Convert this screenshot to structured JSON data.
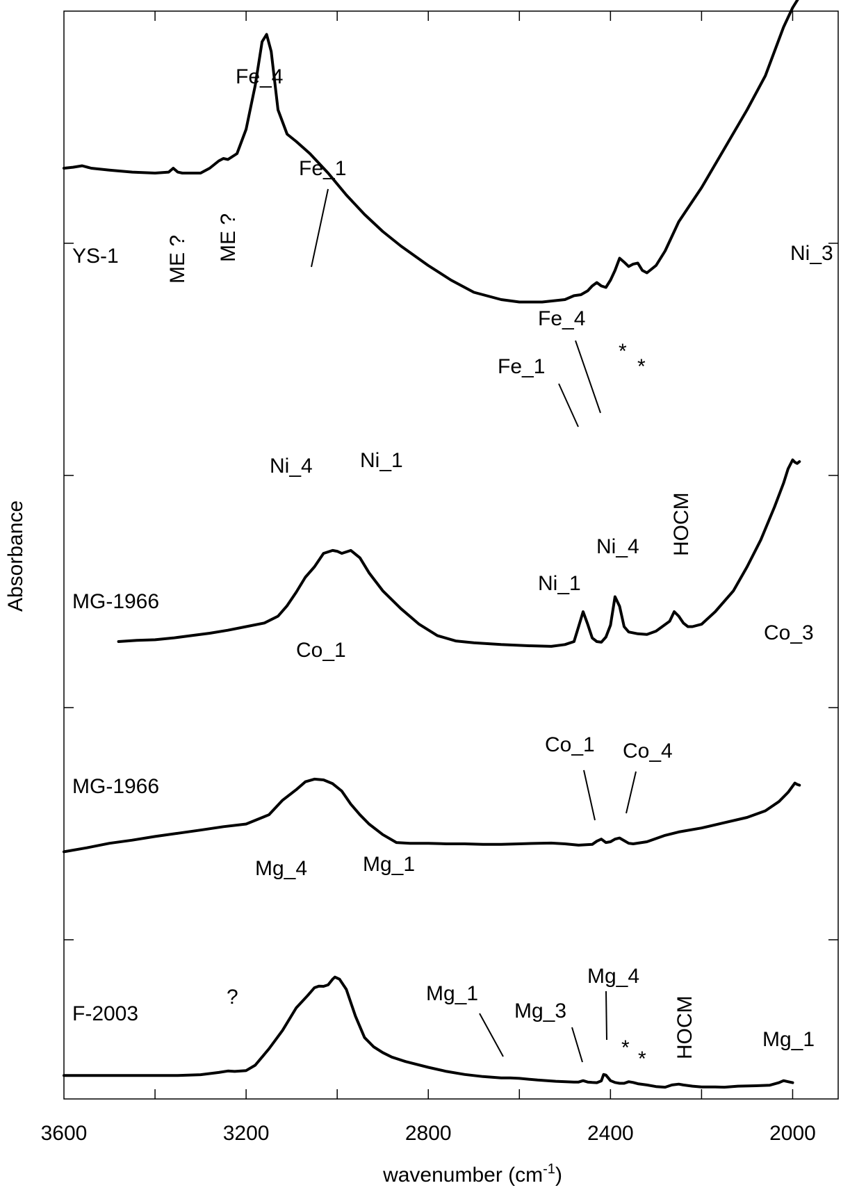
{
  "chart_data": {
    "type": "line",
    "xlabel": "wavenumber (cm",
    "xlabel_sup": "-1",
    "xlabel_close": ")",
    "ylabel": "Absorbance",
    "xlim": [
      3600,
      1900
    ],
    "xdir": "reversed",
    "x_ticks": [
      3600,
      3200,
      2800,
      2400,
      2000
    ],
    "x_tick_labels": [
      "3600",
      "3200",
      "2800",
      "2400",
      "2000"
    ],
    "grid": false,
    "series": [
      {
        "name": "YS-1",
        "x": [
          3600,
          3580,
          3560,
          3540,
          3500,
          3450,
          3400,
          3370,
          3360,
          3350,
          3340,
          3300,
          3280,
          3260,
          3250,
          3240,
          3220,
          3200,
          3180,
          3165,
          3155,
          3145,
          3130,
          3110,
          3090,
          3060,
          3020,
          2980,
          2940,
          2900,
          2860,
          2800,
          2750,
          2700,
          2640,
          2600,
          2550,
          2500,
          2480,
          2465,
          2450,
          2440,
          2430,
          2420,
          2410,
          2400,
          2390,
          2380,
          2370,
          2360,
          2350,
          2340,
          2330,
          2320,
          2300,
          2280,
          2250,
          2200,
          2150,
          2100,
          2060,
          2040,
          2020,
          2000,
          1980,
          1970
        ],
        "y": [
          0.64,
          0.642,
          0.645,
          0.64,
          0.636,
          0.632,
          0.63,
          0.632,
          0.64,
          0.632,
          0.63,
          0.63,
          0.64,
          0.655,
          0.66,
          0.658,
          0.67,
          0.72,
          0.81,
          0.9,
          0.915,
          0.88,
          0.76,
          0.71,
          0.695,
          0.67,
          0.63,
          0.585,
          0.545,
          0.51,
          0.48,
          0.44,
          0.41,
          0.385,
          0.37,
          0.365,
          0.365,
          0.37,
          0.378,
          0.38,
          0.388,
          0.398,
          0.405,
          0.398,
          0.395,
          0.41,
          0.43,
          0.455,
          0.447,
          0.438,
          0.443,
          0.445,
          0.43,
          0.425,
          0.44,
          0.47,
          0.53,
          0.6,
          0.68,
          0.76,
          0.83,
          0.88,
          0.93,
          0.97,
          1.0,
          1.02
        ]
      },
      {
        "name": "MG-1966",
        "x": [
          3480,
          3440,
          3400,
          3360,
          3320,
          3280,
          3240,
          3200,
          3160,
          3130,
          3110,
          3090,
          3070,
          3050,
          3030,
          3010,
          3000,
          2990,
          2970,
          2950,
          2930,
          2900,
          2860,
          2820,
          2780,
          2740,
          2700,
          2640,
          2580,
          2530,
          2500,
          2480,
          2470,
          2460,
          2450,
          2440,
          2430,
          2420,
          2410,
          2400,
          2390,
          2380,
          2370,
          2360,
          2340,
          2320,
          2300,
          2270,
          2260,
          2250,
          2240,
          2230,
          2220,
          2200,
          2170,
          2130,
          2100,
          2070,
          2040,
          2020,
          2010,
          2000,
          1995,
          1990,
          1985
        ],
        "y": [
          0.2,
          0.204,
          0.206,
          0.212,
          0.22,
          0.228,
          0.238,
          0.25,
          0.262,
          0.285,
          0.32,
          0.365,
          0.415,
          0.45,
          0.495,
          0.505,
          0.502,
          0.495,
          0.505,
          0.48,
          0.43,
          0.37,
          0.31,
          0.258,
          0.22,
          0.202,
          0.196,
          0.19,
          0.186,
          0.184,
          0.19,
          0.2,
          0.25,
          0.3,
          0.258,
          0.212,
          0.2,
          0.198,
          0.215,
          0.255,
          0.35,
          0.318,
          0.25,
          0.232,
          0.226,
          0.224,
          0.235,
          0.268,
          0.3,
          0.285,
          0.262,
          0.25,
          0.25,
          0.258,
          0.3,
          0.37,
          0.45,
          0.54,
          0.65,
          0.73,
          0.778,
          0.808,
          0.8,
          0.796,
          0.802
        ]
      },
      {
        "name": "MG-1966",
        "x": [
          3600,
          3550,
          3500,
          3450,
          3400,
          3350,
          3300,
          3250,
          3200,
          3150,
          3120,
          3090,
          3070,
          3050,
          3030,
          3010,
          2990,
          2970,
          2950,
          2930,
          2900,
          2870,
          2840,
          2800,
          2760,
          2720,
          2680,
          2640,
          2600,
          2560,
          2530,
          2500,
          2470,
          2440,
          2430,
          2420,
          2410,
          2400,
          2390,
          2380,
          2370,
          2360,
          2350,
          2320,
          2300,
          2280,
          2250,
          2200,
          2150,
          2100,
          2060,
          2030,
          2010,
          1995,
          1990,
          1985
        ],
        "y": [
          0.02,
          0.035,
          0.052,
          0.064,
          0.078,
          0.09,
          0.102,
          0.115,
          0.125,
          0.16,
          0.215,
          0.255,
          0.285,
          0.295,
          0.292,
          0.278,
          0.25,
          0.2,
          0.16,
          0.125,
          0.085,
          0.055,
          0.052,
          0.052,
          0.05,
          0.05,
          0.048,
          0.048,
          0.05,
          0.052,
          0.053,
          0.05,
          0.045,
          0.048,
          0.06,
          0.068,
          0.055,
          0.058,
          0.068,
          0.072,
          0.062,
          0.052,
          0.05,
          0.058,
          0.07,
          0.082,
          0.095,
          0.11,
          0.13,
          0.15,
          0.175,
          0.21,
          0.245,
          0.28,
          0.275,
          0.272
        ]
      },
      {
        "name": "F-2003",
        "x": [
          3600,
          3500,
          3400,
          3350,
          3300,
          3260,
          3240,
          3225,
          3200,
          3180,
          3150,
          3120,
          3090,
          3065,
          3050,
          3040,
          3030,
          3020,
          3010,
          3005,
          2995,
          2980,
          2960,
          2940,
          2920,
          2900,
          2880,
          2850,
          2800,
          2760,
          2720,
          2680,
          2640,
          2620,
          2600,
          2560,
          2520,
          2480,
          2470,
          2460,
          2450,
          2440,
          2430,
          2420,
          2415,
          2410,
          2400,
          2390,
          2380,
          2370,
          2360,
          2350,
          2340,
          2320,
          2300,
          2280,
          2265,
          2250,
          2240,
          2220,
          2200,
          2170,
          2150,
          2120,
          2080,
          2050,
          2030,
          2020,
          2010,
          2000
        ],
        "y": [
          0.06,
          0.06,
          0.06,
          0.06,
          0.064,
          0.075,
          0.082,
          0.08,
          0.084,
          0.11,
          0.19,
          0.28,
          0.39,
          0.45,
          0.488,
          0.496,
          0.495,
          0.502,
          0.53,
          0.54,
          0.53,
          0.48,
          0.35,
          0.245,
          0.2,
          0.172,
          0.15,
          0.128,
          0.1,
          0.08,
          0.065,
          0.055,
          0.048,
          0.048,
          0.046,
          0.038,
          0.032,
          0.028,
          0.028,
          0.035,
          0.028,
          0.026,
          0.025,
          0.034,
          0.065,
          0.062,
          0.035,
          0.026,
          0.022,
          0.022,
          0.03,
          0.026,
          0.02,
          0.014,
          0.006,
          0.003,
          0.014,
          0.018,
          0.014,
          0.008,
          0.004,
          0.004,
          0.003,
          0.008,
          0.01,
          0.013,
          0.025,
          0.035,
          0.03,
          0.025
        ]
      }
    ],
    "annotations": {
      "ys1": [
        "YS-1",
        "ME ?",
        "ME ?",
        "Fe_4",
        "Fe_1",
        "Fe_4",
        "Fe_1",
        "*",
        "*",
        "Ni_3"
      ],
      "mg1966_ni": [
        "MG-1966",
        "Ni_4",
        "Ni_1",
        "Ni_1",
        "Ni_4",
        "HOCM"
      ],
      "mg1966_co": [
        "MG-1966",
        "Co_1",
        "Co_1",
        "Co_4",
        "Co_3"
      ],
      "f2003": [
        "F-2003",
        "?",
        "Mg_4",
        "Mg_1",
        "Mg_1",
        "Mg_3",
        "Mg_4",
        "*",
        "*",
        "HOCM",
        "Mg_1"
      ]
    }
  }
}
